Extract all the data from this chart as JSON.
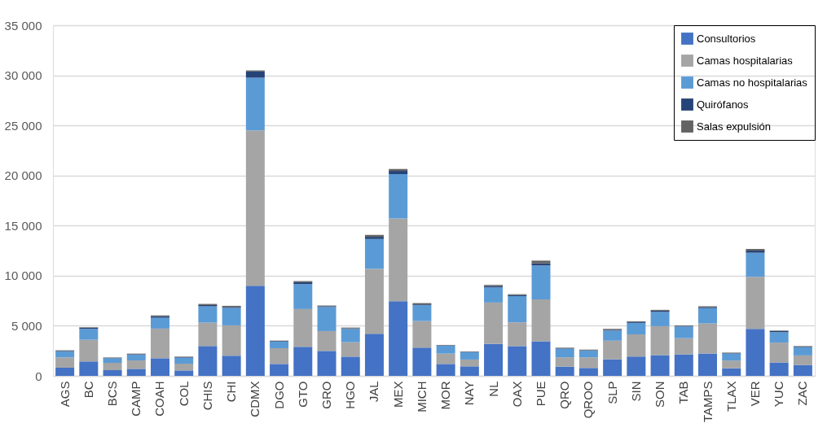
{
  "chart_data": {
    "type": "bar",
    "stacked": true,
    "categories": [
      "AGS",
      "BC",
      "BCS",
      "CAMP",
      "COAH",
      "COL",
      "CHIS",
      "CHI",
      "CDMX",
      "DGO",
      "GTO",
      "GRO",
      "HGO",
      "JAL",
      "MEX",
      "MICH",
      "MOR",
      "NAY",
      "NL",
      "OAX",
      "PUE",
      "QRO",
      "QROO",
      "SLP",
      "SIN",
      "SON",
      "TAB",
      "TAMPS",
      "TLAX",
      "VER",
      "YUC",
      "ZAC"
    ],
    "series": [
      {
        "name": "Consultorios",
        "color": "#4472c4",
        "values": [
          810,
          1440,
          570,
          700,
          1760,
          540,
          2980,
          2010,
          9000,
          1190,
          2900,
          2490,
          1920,
          4200,
          7450,
          2820,
          1190,
          950,
          3200,
          2970,
          3460,
          930,
          790,
          1660,
          1930,
          2070,
          2150,
          2230,
          760,
          4690,
          1340,
          1090
        ]
      },
      {
        "name": "Camas hospitalarias",
        "color": "#a5a5a5",
        "values": [
          1030,
          2160,
          730,
          840,
          2960,
          680,
          2330,
          3030,
          15500,
          1570,
          3770,
          1980,
          1440,
          6480,
          8270,
          2650,
          1030,
          680,
          4120,
          2370,
          4170,
          920,
          1060,
          1850,
          2210,
          2890,
          1610,
          3000,
          770,
          5200,
          1980,
          950
        ]
      },
      {
        "name": "Camas no hospitalarias",
        "color": "#5b9bd5",
        "values": [
          600,
          1090,
          460,
          570,
          1080,
          600,
          1630,
          1740,
          5260,
          650,
          2490,
          2410,
          1330,
          2980,
          4420,
          1580,
          790,
          730,
          1510,
          2620,
          3380,
          870,
          660,
          1010,
          1150,
          1420,
          1170,
          1530,
          700,
          2400,
          1040,
          820
        ]
      },
      {
        "name": "Quirófanos",
        "color": "#264478",
        "values": [
          50,
          110,
          40,
          50,
          160,
          50,
          130,
          100,
          620,
          60,
          190,
          80,
          50,
          220,
          320,
          80,
          40,
          40,
          140,
          110,
          220,
          40,
          50,
          80,
          80,
          130,
          60,
          110,
          40,
          220,
          110,
          50
        ]
      },
      {
        "name": "Salas expulsión",
        "color": "#636363",
        "values": [
          60,
          50,
          40,
          60,
          80,
          50,
          110,
          110,
          110,
          50,
          110,
          60,
          80,
          190,
          190,
          130,
          40,
          40,
          110,
          80,
          270,
          50,
          60,
          90,
          80,
          80,
          50,
          80,
          50,
          160,
          50,
          60
        ]
      }
    ],
    "ylim": [
      0,
      35000
    ],
    "yticks": [
      {
        "value": 0,
        "label": "0"
      },
      {
        "value": 5000,
        "label": "5 000"
      },
      {
        "value": 10000,
        "label": "10 000"
      },
      {
        "value": 15000,
        "label": "15 000"
      },
      {
        "value": 20000,
        "label": "20 000"
      },
      {
        "value": 25000,
        "label": "25 000"
      },
      {
        "value": 30000,
        "label": "30 000"
      },
      {
        "value": 35000,
        "label": "35 000"
      }
    ],
    "grid": "y",
    "legend": "top right"
  }
}
